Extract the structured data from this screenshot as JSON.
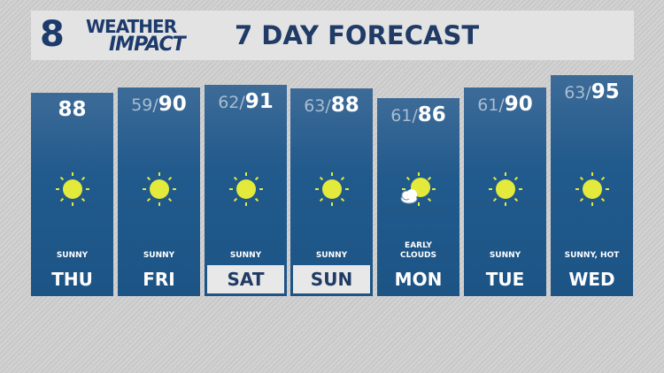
{
  "header": {
    "logo_number": "8",
    "logo_line1": "WEATHER",
    "logo_line2": "IMPACT",
    "title": "7 DAY FORECAST"
  },
  "colors": {
    "panel": "#215a8c",
    "sun": "#e3ea3c",
    "highlight": "#e8e8e8"
  },
  "days": [
    {
      "day": "THU",
      "low": "",
      "high": "88",
      "condition": "SUNNY",
      "icon": "sun-icon",
      "highlighted": false
    },
    {
      "day": "FRI",
      "low": "59/",
      "high": "90",
      "condition": "SUNNY",
      "icon": "sun-icon",
      "highlighted": false
    },
    {
      "day": "SAT",
      "low": "62/",
      "high": "91",
      "condition": "SUNNY",
      "icon": "sun-icon",
      "highlighted": true
    },
    {
      "day": "SUN",
      "low": "63/",
      "high": "88",
      "condition": "SUNNY",
      "icon": "sun-icon",
      "highlighted": true
    },
    {
      "day": "MON",
      "low": "61/",
      "high": "86",
      "condition": "EARLY CLOUDS",
      "icon": "partly-cloudy-icon",
      "highlighted": false
    },
    {
      "day": "TUE",
      "low": "61/",
      "high": "90",
      "condition": "SUNNY",
      "icon": "sun-icon",
      "highlighted": false
    },
    {
      "day": "WED",
      "low": "63/",
      "high": "95",
      "condition": "SUNNY, HOT",
      "icon": "sun-icon",
      "highlighted": false
    }
  ]
}
